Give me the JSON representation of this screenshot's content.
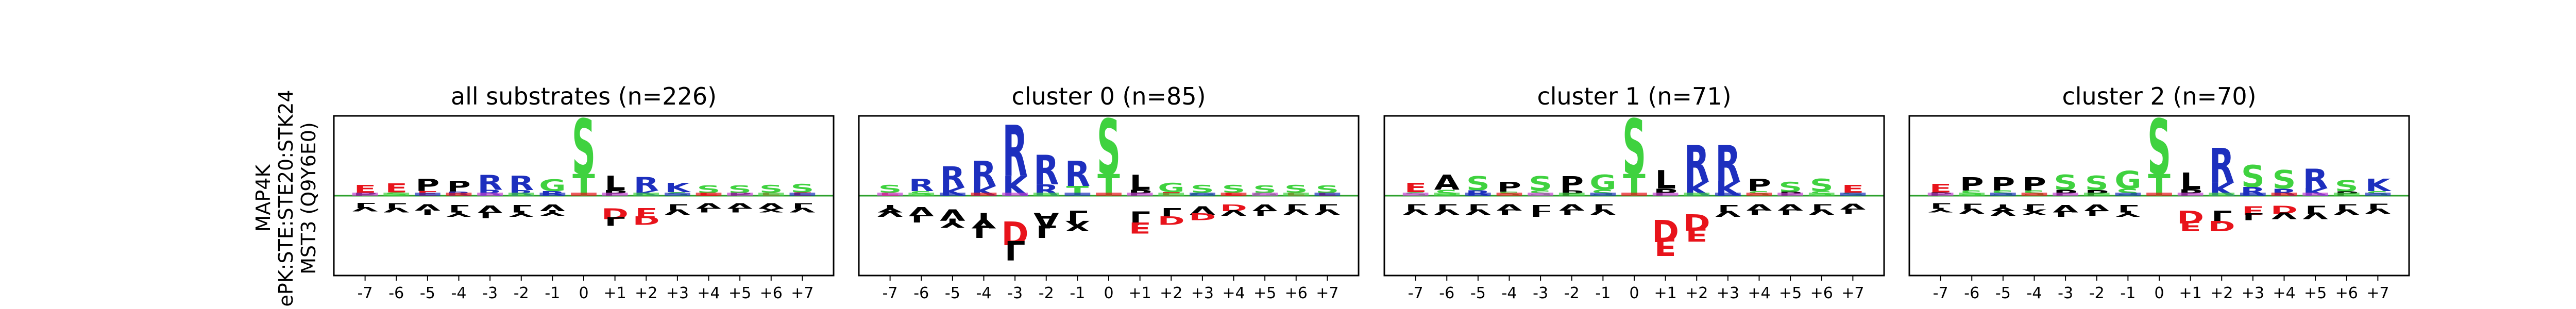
{
  "ylabel_lines": [
    "MAP4K",
    "ePK:STE:STE20:STK24",
    "MST3 (Q9Y6E0)"
  ],
  "colors": {
    "acidic": "#e8131b",
    "basic": "#1d2fbe",
    "hydrophobic": "#000000",
    "polar": "#3fd23f",
    "special": "#c33fd2",
    "baseline": "#2ca02c"
  },
  "chart_data": [
    {
      "type": "sequence-logo",
      "title": "all substrates (n=226)",
      "positions": [
        "-7",
        "-6",
        "-5",
        "-4",
        "-3",
        "-2",
        "-1",
        "0",
        "+1",
        "+2",
        "+3",
        "+4",
        "+5",
        "+6",
        "+7"
      ],
      "top": [
        [
          "E",
          "P"
        ],
        [
          "E",
          "S"
        ],
        [
          "P",
          "E"
        ],
        [
          "P",
          "R"
        ],
        [
          "R",
          "R"
        ],
        [
          "R",
          "R"
        ],
        [
          "G",
          "R"
        ],
        [
          "S",
          "T"
        ],
        [
          "L",
          "P"
        ],
        [
          "R",
          "K"
        ],
        [
          "K",
          "S"
        ],
        [
          "S",
          "E"
        ],
        [
          "S",
          "P"
        ],
        [
          "S",
          "E"
        ],
        [
          "S",
          "E"
        ]
      ],
      "top_heights": [
        0.14,
        0.16,
        0.22,
        0.19,
        0.27,
        0.26,
        0.21,
        1.0,
        0.26,
        0.24,
        0.17,
        0.13,
        0.13,
        0.14,
        0.15
      ],
      "bottom": [
        [
          "L",
          "V"
        ],
        [
          "L",
          "V"
        ],
        [
          "V",
          "I"
        ],
        [
          "L",
          "Y"
        ],
        [
          "V",
          "L"
        ],
        [
          "L",
          "Y"
        ],
        [
          "V",
          "Y"
        ],
        [],
        [
          "D",
          "L"
        ],
        [
          "E",
          "D"
        ],
        [
          "L",
          "V"
        ],
        [
          "V",
          "L"
        ],
        [
          "V",
          "L"
        ],
        [
          "V",
          "X"
        ],
        [
          "L",
          "V"
        ]
      ],
      "bottom_heights": [
        0.12,
        0.13,
        0.15,
        0.17,
        0.18,
        0.17,
        0.16,
        0.0,
        0.25,
        0.24,
        0.15,
        0.13,
        0.13,
        0.13,
        0.13
      ]
    },
    {
      "type": "sequence-logo",
      "title": "cluster 0 (n=85)",
      "positions": [
        "-7",
        "-6",
        "-5",
        "-4",
        "-3",
        "-2",
        "-1",
        "0",
        "+1",
        "+2",
        "+3",
        "+4",
        "+5",
        "+6",
        "+7"
      ],
      "top": [
        [
          "S",
          "E"
        ],
        [
          "R",
          "S"
        ],
        [
          "R",
          "K"
        ],
        [
          "R",
          "K"
        ],
        [
          "R",
          "K"
        ],
        [
          "R",
          "R"
        ],
        [
          "R",
          "T"
        ],
        [
          "S",
          "T"
        ],
        [
          "L",
          "P"
        ],
        [
          "G",
          "E"
        ],
        [
          "S",
          "G"
        ],
        [
          "S",
          "E"
        ],
        [
          "S",
          "G"
        ],
        [
          "S",
          "E"
        ],
        [
          "S",
          "E"
        ]
      ],
      "top_heights": [
        0.14,
        0.22,
        0.38,
        0.45,
        0.92,
        0.53,
        0.45,
        1.0,
        0.27,
        0.17,
        0.14,
        0.14,
        0.13,
        0.14,
        0.13
      ],
      "bottom": [
        [
          "Y",
          "V"
        ],
        [
          "V",
          "L"
        ],
        [
          "V",
          "Y"
        ],
        [
          "Y",
          "L"
        ],
        [
          "D",
          "L"
        ],
        [
          "A",
          "L"
        ],
        [
          "L",
          "X"
        ],
        [],
        [
          "L",
          "E"
        ],
        [
          "L",
          "D"
        ],
        [
          "V",
          "D"
        ],
        [
          "D",
          "V"
        ],
        [
          "V",
          "L"
        ],
        [
          "L",
          "V"
        ],
        [
          "L",
          "V"
        ]
      ],
      "bottom_heights": [
        0.17,
        0.22,
        0.27,
        0.36,
        0.56,
        0.36,
        0.3,
        0.0,
        0.32,
        0.24,
        0.2,
        0.16,
        0.16,
        0.15,
        0.15
      ]
    },
    {
      "type": "sequence-logo",
      "title": "cluster 1 (n=71)",
      "positions": [
        "-7",
        "-6",
        "-5",
        "-4",
        "-3",
        "-2",
        "-1",
        "0",
        "+1",
        "+2",
        "+3",
        "+4",
        "+5",
        "+6",
        "+7"
      ],
      "top": [
        [
          "E",
          "S"
        ],
        [
          "A",
          "S"
        ],
        [
          "S",
          "R"
        ],
        [
          "P",
          "S"
        ],
        [
          "S",
          "S"
        ],
        [
          "P",
          "P"
        ],
        [
          "G",
          "S"
        ],
        [
          "S",
          "T"
        ],
        [
          "L",
          "P"
        ],
        [
          "R",
          "K"
        ],
        [
          "R",
          "K"
        ],
        [
          "P",
          "S"
        ],
        [
          "S",
          "P"
        ],
        [
          "S",
          "S"
        ],
        [
          "E",
          "S"
        ]
      ],
      "top_heights": [
        0.17,
        0.27,
        0.25,
        0.18,
        0.25,
        0.25,
        0.27,
        1.0,
        0.33,
        0.66,
        0.66,
        0.22,
        0.18,
        0.22,
        0.14
      ],
      "bottom": [
        [
          "L",
          "V"
        ],
        [
          "L",
          "V"
        ],
        [
          "L",
          "V"
        ],
        [
          "V",
          "L"
        ],
        [
          "L",
          "L"
        ],
        [
          "V",
          "L"
        ],
        [
          "L",
          "V"
        ],
        [],
        [
          "D",
          "E"
        ],
        [
          "D",
          "E"
        ],
        [
          "L",
          "V"
        ],
        [
          "V",
          "L"
        ],
        [
          "V",
          "L"
        ],
        [
          "L",
          "V"
        ],
        [
          "V",
          "L"
        ]
      ],
      "bottom_heights": [
        0.15,
        0.15,
        0.15,
        0.15,
        0.17,
        0.15,
        0.15,
        0.0,
        0.52,
        0.39,
        0.17,
        0.15,
        0.15,
        0.15,
        0.14
      ]
    },
    {
      "type": "sequence-logo",
      "title": "cluster 2 (n=70)",
      "positions": [
        "-7",
        "-6",
        "-5",
        "-4",
        "-3",
        "-2",
        "-1",
        "0",
        "+1",
        "+2",
        "+3",
        "+4",
        "+5",
        "+6",
        "+7"
      ],
      "top": [
        [
          "E",
          "P"
        ],
        [
          "P",
          "S"
        ],
        [
          "P",
          "S"
        ],
        [
          "P",
          "S"
        ],
        [
          "S",
          "P"
        ],
        [
          "S",
          "P"
        ],
        [
          "G",
          "S"
        ],
        [
          "S",
          "T"
        ],
        [
          "L",
          "P"
        ],
        [
          "R",
          "K"
        ],
        [
          "S",
          "R"
        ],
        [
          "S",
          "R"
        ],
        [
          "R",
          "K"
        ],
        [
          "S",
          "P"
        ],
        [
          "K",
          "S"
        ]
      ],
      "top_heights": [
        0.15,
        0.24,
        0.24,
        0.24,
        0.27,
        0.26,
        0.32,
        1.0,
        0.3,
        0.62,
        0.4,
        0.33,
        0.35,
        0.2,
        0.22
      ],
      "bottom": [
        [
          "L",
          "Y"
        ],
        [
          "L",
          "V"
        ],
        [
          "Y",
          "V"
        ],
        [
          "L",
          "X"
        ],
        [
          "V",
          "L"
        ],
        [
          "V",
          "L"
        ],
        [
          "L",
          "Y"
        ],
        [],
        [
          "D",
          "E"
        ],
        [
          "L",
          "D"
        ],
        [
          "E",
          "L"
        ],
        [
          "D",
          "V"
        ],
        [
          "L",
          "V"
        ],
        [
          "L",
          "V"
        ],
        [
          "L",
          "V"
        ]
      ],
      "bottom_heights": [
        0.13,
        0.14,
        0.16,
        0.15,
        0.17,
        0.16,
        0.17,
        0.0,
        0.3,
        0.3,
        0.2,
        0.19,
        0.19,
        0.15,
        0.14
      ]
    }
  ]
}
